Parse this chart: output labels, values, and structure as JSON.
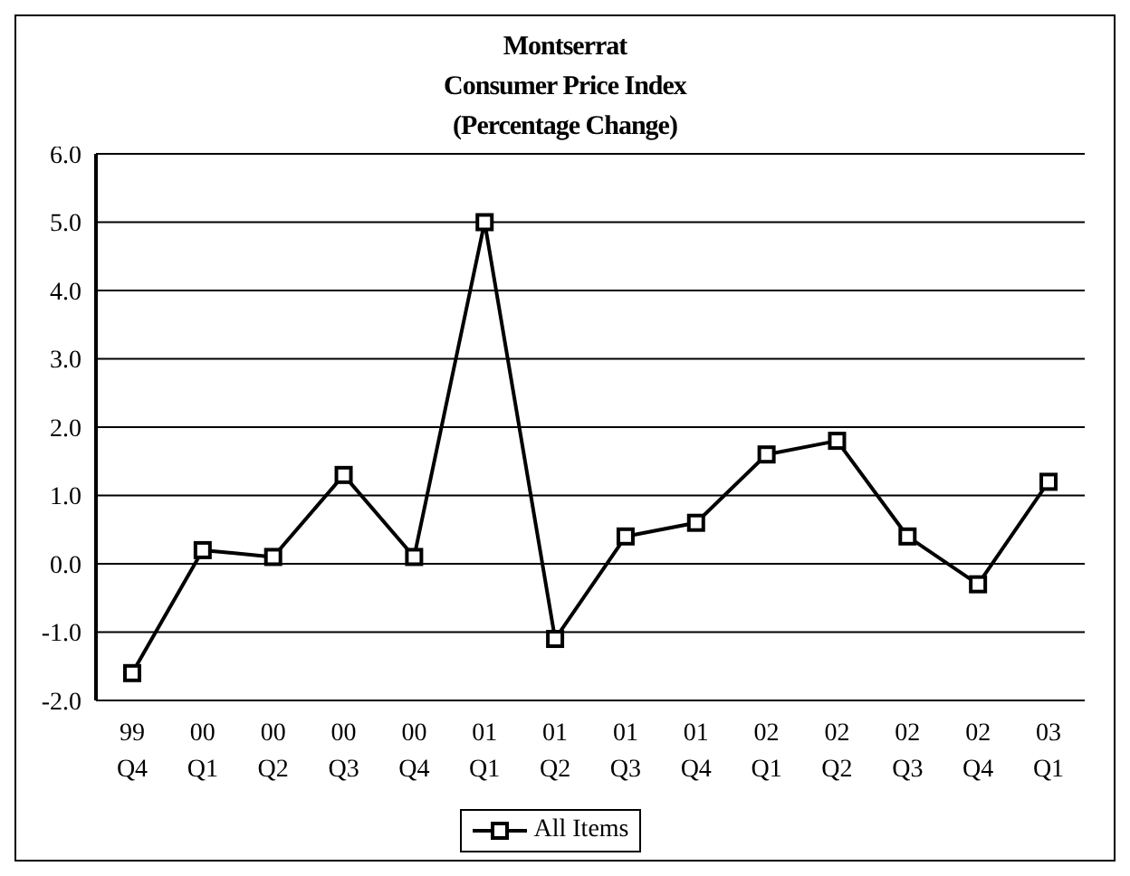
{
  "chart_data": {
    "type": "line",
    "title": "Montserrat\nConsumer Price Index\n(Percentage Change)",
    "categories": [
      "99 Q4",
      "00 Q1",
      "00 Q2",
      "00 Q3",
      "00 Q4",
      "01 Q1",
      "01 Q2",
      "01 Q3",
      "01 Q4",
      "02 Q1",
      "02 Q2",
      "02 Q3",
      "02 Q4",
      "03 Q1"
    ],
    "series": [
      {
        "name": "All Items",
        "color": "#000000",
        "values": [
          -1.6,
          0.2,
          0.1,
          1.3,
          0.1,
          5.0,
          -1.1,
          0.4,
          0.6,
          1.6,
          1.8,
          0.4,
          -0.3,
          1.2
        ]
      }
    ],
    "ylim": [
      -2,
      6
    ],
    "yticks": [
      {
        "value": -2,
        "label": "-2.0"
      },
      {
        "value": -1,
        "label": "-1.0"
      },
      {
        "value": 0,
        "label": "0.0"
      },
      {
        "value": 1,
        "label": "1.0"
      },
      {
        "value": 2,
        "label": "2.0"
      },
      {
        "value": 3,
        "label": "3.0"
      },
      {
        "value": 4,
        "label": "4.0"
      },
      {
        "value": 5,
        "label": "5.0"
      },
      {
        "value": 6,
        "label": "6.0"
      }
    ],
    "grid": "y",
    "legend": "bottom",
    "marker": "square",
    "line_style": "solid"
  }
}
